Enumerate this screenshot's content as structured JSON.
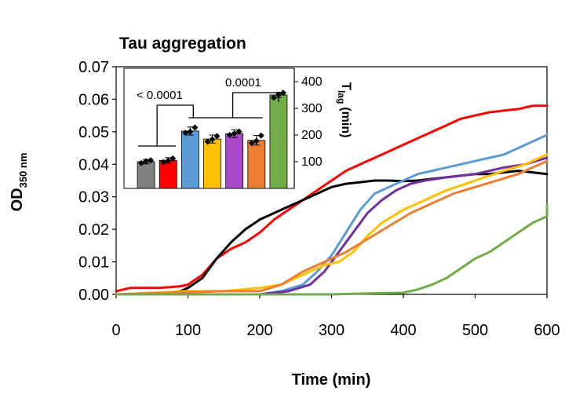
{
  "chart_data": [
    {
      "type": "line",
      "title": "Tau aggregation",
      "xlabel": "Time (min)",
      "ylabel_main": "OD",
      "ylabel_sub": "350 nm",
      "xlim": [
        0,
        600
      ],
      "ylim": [
        0,
        0.07
      ],
      "xticks": [
        "0",
        "100",
        "200",
        "300",
        "400",
        "500",
        "600"
      ],
      "yticks": [
        "0.00",
        "0.01",
        "0.02",
        "0.03",
        "0.04",
        "0.05",
        "0.06",
        "0.07"
      ],
      "grid": false,
      "series": [
        {
          "color": "#ff0000",
          "points": [
            [
              0,
              0.001
            ],
            [
              20,
              0.002
            ],
            [
              60,
              0.002
            ],
            [
              90,
              0.0025
            ],
            [
              100,
              0.003
            ],
            [
              120,
              0.006
            ],
            [
              140,
              0.011
            ],
            [
              160,
              0.014
            ],
            [
              180,
              0.016
            ],
            [
              200,
              0.019
            ],
            [
              220,
              0.023
            ],
            [
              240,
              0.026
            ],
            [
              260,
              0.029
            ],
            [
              280,
              0.032
            ],
            [
              300,
              0.035
            ],
            [
              320,
              0.038
            ],
            [
              340,
              0.04
            ],
            [
              360,
              0.042
            ],
            [
              380,
              0.044
            ],
            [
              400,
              0.046
            ],
            [
              420,
              0.048
            ],
            [
              440,
              0.05
            ],
            [
              460,
              0.052
            ],
            [
              480,
              0.054
            ],
            [
              500,
              0.055
            ],
            [
              520,
              0.056
            ],
            [
              540,
              0.0565
            ],
            [
              560,
              0.057
            ],
            [
              580,
              0.058
            ],
            [
              600,
              0.058
            ]
          ]
        },
        {
          "color": "#000000",
          "points": [
            [
              0,
              0
            ],
            [
              60,
              0
            ],
            [
              90,
              0.001
            ],
            [
              100,
              0.002
            ],
            [
              120,
              0.005
            ],
            [
              140,
              0.011
            ],
            [
              160,
              0.016
            ],
            [
              180,
              0.02
            ],
            [
              200,
              0.023
            ],
            [
              220,
              0.025
            ],
            [
              240,
              0.027
            ],
            [
              260,
              0.029
            ],
            [
              280,
              0.031
            ],
            [
              300,
              0.033
            ],
            [
              320,
              0.034
            ],
            [
              340,
              0.0345
            ],
            [
              360,
              0.035
            ],
            [
              380,
              0.035
            ],
            [
              400,
              0.0348
            ],
            [
              420,
              0.035
            ],
            [
              440,
              0.0355
            ],
            [
              460,
              0.036
            ],
            [
              480,
              0.0365
            ],
            [
              500,
              0.037
            ],
            [
              520,
              0.037
            ],
            [
              540,
              0.0375
            ],
            [
              560,
              0.038
            ],
            [
              580,
              0.0375
            ],
            [
              600,
              0.037
            ]
          ]
        },
        {
          "color": "#5b9bd5",
          "points": [
            [
              0,
              0
            ],
            [
              200,
              0
            ],
            [
              230,
              0.001
            ],
            [
              260,
              0.003
            ],
            [
              280,
              0.007
            ],
            [
              300,
              0.012
            ],
            [
              320,
              0.019
            ],
            [
              340,
              0.026
            ],
            [
              360,
              0.031
            ],
            [
              380,
              0.033
            ],
            [
              400,
              0.035
            ],
            [
              420,
              0.037
            ],
            [
              440,
              0.038
            ],
            [
              460,
              0.039
            ],
            [
              480,
              0.04
            ],
            [
              500,
              0.041
            ],
            [
              520,
              0.042
            ],
            [
              540,
              0.043
            ],
            [
              560,
              0.045
            ],
            [
              580,
              0.047
            ],
            [
              600,
              0.049
            ]
          ]
        },
        {
          "color": "#7030a0",
          "points": [
            [
              0,
              0
            ],
            [
              200,
              0
            ],
            [
              240,
              0.001
            ],
            [
              270,
              0.003
            ],
            [
              290,
              0.007
            ],
            [
              310,
              0.013
            ],
            [
              330,
              0.019
            ],
            [
              350,
              0.025
            ],
            [
              370,
              0.029
            ],
            [
              390,
              0.032
            ],
            [
              410,
              0.034
            ],
            [
              430,
              0.035
            ],
            [
              460,
              0.036
            ],
            [
              500,
              0.037
            ],
            [
              540,
              0.039
            ],
            [
              570,
              0.04
            ],
            [
              600,
              0.042
            ]
          ]
        },
        {
          "color": "#ffc000",
          "points": [
            [
              0,
              0
            ],
            [
              100,
              0.001
            ],
            [
              150,
              0.001
            ],
            [
              200,
              0.002
            ],
            [
              230,
              0.003
            ],
            [
              260,
              0.006
            ],
            [
              290,
              0.009
            ],
            [
              310,
              0.01
            ],
            [
              330,
              0.013
            ],
            [
              350,
              0.018
            ],
            [
              370,
              0.022
            ],
            [
              400,
              0.026
            ],
            [
              430,
              0.029
            ],
            [
              460,
              0.032
            ],
            [
              500,
              0.035
            ],
            [
              540,
              0.038
            ],
            [
              570,
              0.04
            ],
            [
              600,
              0.043
            ]
          ]
        },
        {
          "color": "#ed7d31",
          "points": [
            [
              0,
              0
            ],
            [
              150,
              0.001
            ],
            [
              200,
              0.001
            ],
            [
              230,
              0.003
            ],
            [
              260,
              0.007
            ],
            [
              290,
              0.01
            ],
            [
              320,
              0.013
            ],
            [
              350,
              0.017
            ],
            [
              380,
              0.021
            ],
            [
              410,
              0.025
            ],
            [
              440,
              0.028
            ],
            [
              470,
              0.031
            ],
            [
              500,
              0.033
            ],
            [
              530,
              0.035
            ],
            [
              560,
              0.037
            ],
            [
              580,
              0.039
            ],
            [
              600,
              0.041
            ]
          ]
        },
        {
          "color": "#70ad47",
          "points": [
            [
              0,
              0
            ],
            [
              150,
              0
            ],
            [
              250,
              0
            ],
            [
              300,
              0
            ],
            [
              350,
              0.0003
            ],
            [
              400,
              0.0005
            ],
            [
              420,
              0.0015
            ],
            [
              440,
              0.003
            ],
            [
              460,
              0.005
            ],
            [
              480,
              0.008
            ],
            [
              500,
              0.011
            ],
            [
              520,
              0.013
            ],
            [
              540,
              0.016
            ],
            [
              560,
              0.019
            ],
            [
              580,
              0.022
            ],
            [
              600,
              0.024
            ],
            [
              620,
              0.025
            ],
            [
              640,
              0.026
            ],
            [
              600,
              0.0275
            ]
          ]
        }
      ]
    },
    {
      "type": "bar",
      "ylabel_main": "T",
      "ylabel_sub": "lag",
      "ylabel_unit": "(min)",
      "ylim": [
        0,
        450
      ],
      "yticks": [
        "100",
        "200",
        "300",
        "400"
      ],
      "ytick_values": [
        100,
        200,
        300,
        400
      ],
      "values": [
        100,
        105,
        215,
        185,
        205,
        180,
        350
      ],
      "errors": [
        8,
        10,
        15,
        15,
        15,
        18,
        10
      ],
      "colors": [
        "#808080",
        "#ff0000",
        "#5b9bd5",
        "#ffc000",
        "#a64ac9",
        "#ed7d31",
        "#70ad47"
      ],
      "points": [
        [
          95,
          102,
          105
        ],
        [
          98,
          104,
          112
        ],
        [
          208,
          213,
          228
        ],
        [
          175,
          184,
          196
        ],
        [
          200,
          206,
          213
        ],
        [
          170,
          178,
          198
        ],
        [
          340,
          351,
          358
        ]
      ],
      "annotations": [
        "< 0.0001",
        "0.0001"
      ]
    }
  ]
}
